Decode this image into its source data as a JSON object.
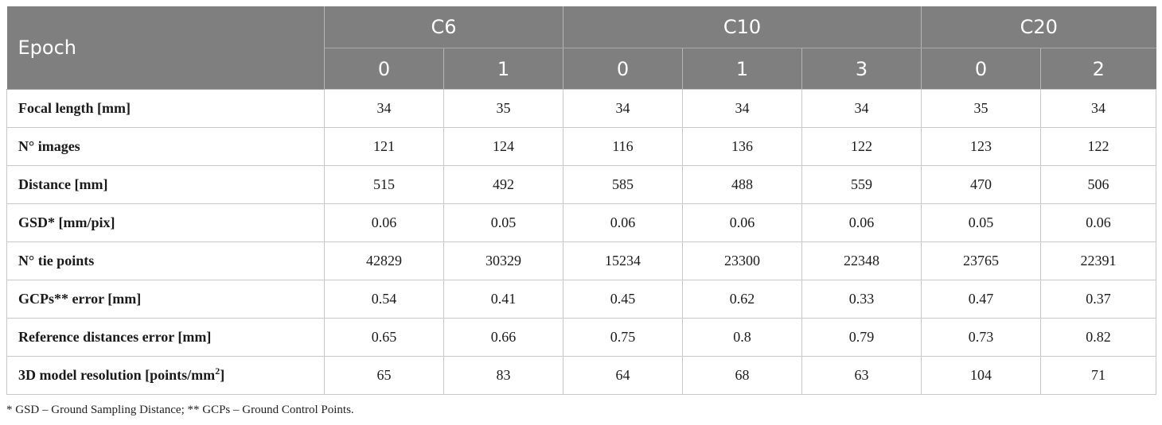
{
  "table": {
    "epoch_label": "Epoch",
    "groups": [
      {
        "name": "C6",
        "epochs": [
          "0",
          "1"
        ]
      },
      {
        "name": "C10",
        "epochs": [
          "0",
          "1",
          "3"
        ]
      },
      {
        "name": "C20",
        "epochs": [
          "0",
          "2"
        ]
      }
    ],
    "rows": [
      {
        "label": "Focal length [mm]",
        "sup": "",
        "label_suffix": "",
        "values": [
          "34",
          "35",
          "34",
          "34",
          "34",
          "35",
          "34"
        ]
      },
      {
        "label": "N° images",
        "sup": "",
        "label_suffix": "",
        "values": [
          "121",
          "124",
          "116",
          "136",
          "122",
          "123",
          "122"
        ]
      },
      {
        "label": "Distance [mm]",
        "sup": "",
        "label_suffix": "",
        "values": [
          "515",
          "492",
          "585",
          "488",
          "559",
          "470",
          "506"
        ]
      },
      {
        "label": "GSD* [mm/pix]",
        "sup": "",
        "label_suffix": "",
        "values": [
          "0.06",
          "0.05",
          "0.06",
          "0.06",
          "0.06",
          "0.05",
          "0.06"
        ]
      },
      {
        "label": "N° tie points",
        "sup": "",
        "label_suffix": "",
        "values": [
          "42829",
          "30329",
          "15234",
          "23300",
          "22348",
          "23765",
          "22391"
        ]
      },
      {
        "label": "GCPs** error [mm]",
        "sup": "",
        "label_suffix": "",
        "values": [
          "0.54",
          "0.41",
          "0.45",
          "0.62",
          "0.33",
          "0.47",
          "0.37"
        ]
      },
      {
        "label": "Reference distances error [mm]",
        "sup": "",
        "label_suffix": "",
        "values": [
          "0.65",
          "0.66",
          "0.75",
          "0.8",
          "0.79",
          "0.73",
          "0.82"
        ]
      },
      {
        "label": "3D model resolution [points/mm",
        "sup": "2",
        "label_suffix": "]",
        "values": [
          "65",
          "83",
          "64",
          "68",
          "63",
          "104",
          "71"
        ]
      }
    ]
  },
  "footnote": "* GSD – Ground Sampling Distance; ** GCPs – Ground Control Points."
}
